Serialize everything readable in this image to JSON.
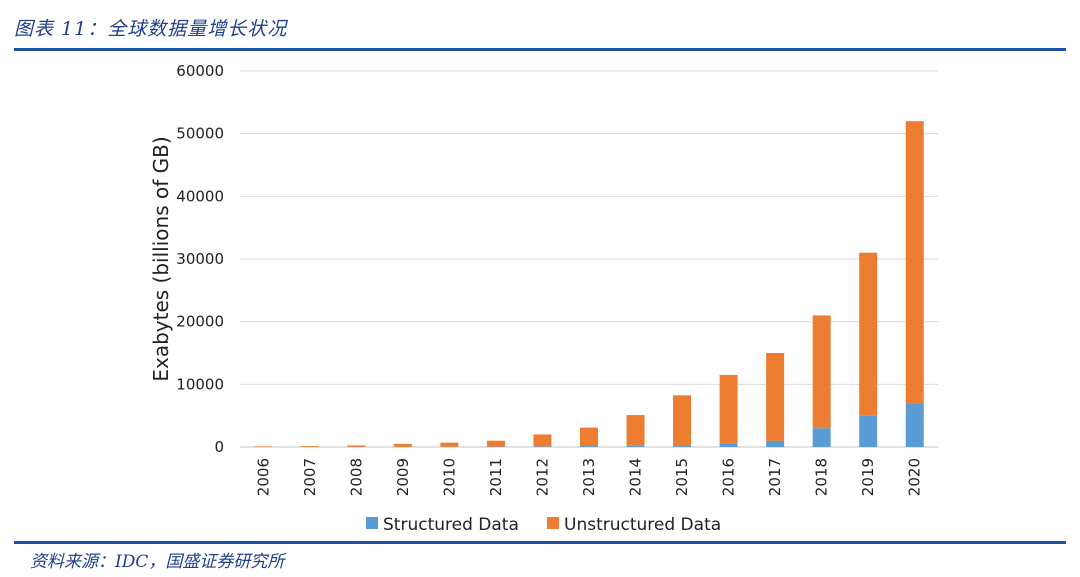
{
  "figure": {
    "title": "图表 11：全球数据量增长状况",
    "source": "资料来源：IDC，国盛证券研究所"
  },
  "colors": {
    "structured": "#5b9bd5",
    "unstructured": "#ed7d31",
    "gridline": "#d9d9d9",
    "accent": "#1f4fa0"
  },
  "chart_data": {
    "type": "bar",
    "stacked": true,
    "title": "",
    "xlabel": "",
    "ylabel": "Exabytes (billions of GB)",
    "ylim": [
      0,
      60000
    ],
    "yticks": [
      0,
      10000,
      20000,
      30000,
      40000,
      50000,
      60000
    ],
    "grid": true,
    "legend_position": "bottom",
    "categories": [
      "2006",
      "2007",
      "2008",
      "2009",
      "2010",
      "2011",
      "2012",
      "2013",
      "2014",
      "2015",
      "2016",
      "2017",
      "2018",
      "2019",
      "2020"
    ],
    "series": [
      {
        "name": "Structured Data",
        "values": [
          10,
          15,
          20,
          30,
          40,
          60,
          100,
          150,
          200,
          300,
          500,
          1000,
          3000,
          5000,
          7000
        ]
      },
      {
        "name": "Unstructured Data",
        "values": [
          90,
          135,
          230,
          470,
          660,
          940,
          1900,
          2950,
          4900,
          7950,
          11000,
          14000,
          18000,
          26000,
          45000
        ]
      }
    ]
  }
}
